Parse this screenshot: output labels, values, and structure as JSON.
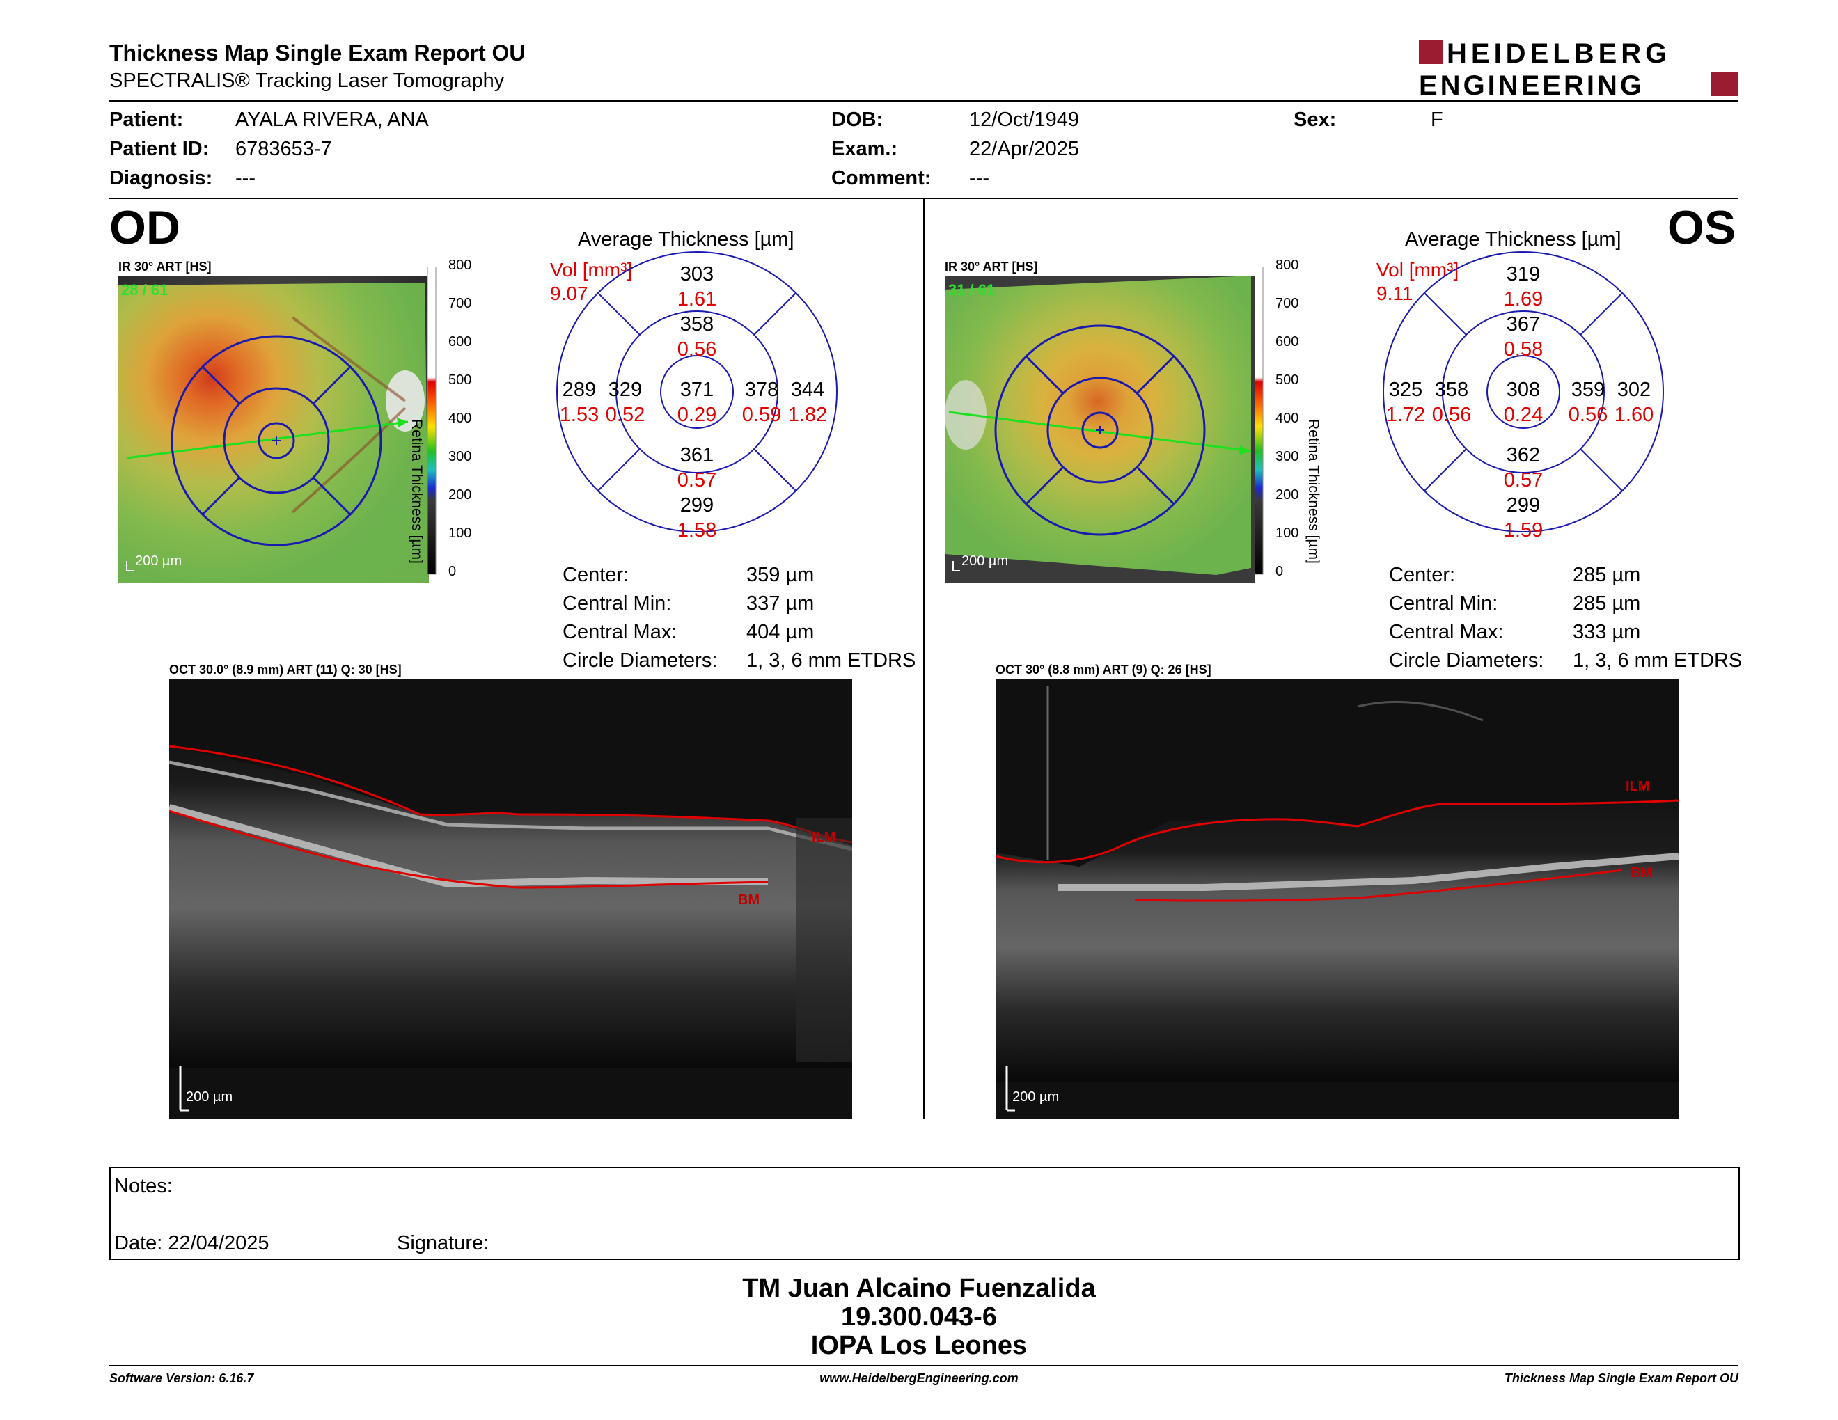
{
  "header": {
    "title": "Thickness Map Single Exam Report OU",
    "subtitle": "SPECTRALIS® Tracking Laser Tomography",
    "logo_line1": "HEIDELBERG",
    "logo_line2": "ENGINEERING",
    "brand_color": "#9b1b30"
  },
  "patient": {
    "patient_label": "Patient:",
    "patient_value": "AYALA RIVERA, ANA",
    "id_label": "Patient ID:",
    "id_value": "6783653-7",
    "diagnosis_label": "Diagnosis:",
    "diagnosis_value": "---",
    "dob_label": "DOB:",
    "dob_value": "12/Oct/1949",
    "exam_label": "Exam.:",
    "exam_value": "22/Apr/2025",
    "comment_label": "Comment:",
    "comment_value": "---",
    "sex_label": "Sex:",
    "sex_value": "F"
  },
  "colorbar": {
    "ticks": [
      "800",
      "700",
      "600",
      "500",
      "400",
      "300",
      "200",
      "100",
      "0"
    ],
    "label": "Retina Thickness [µm]"
  },
  "od": {
    "eye": "OD",
    "ir_caption": "IR 30° ART [HS]",
    "frame_count": "28 / 61",
    "scale_label": "200 µm",
    "map_title": "Average Thickness [µm]",
    "vol_label": "Vol [mm³]",
    "vol_total": "9.07",
    "sectors": {
      "outer_sup": {
        "thick": "303",
        "vol": "1.61"
      },
      "inner_sup": {
        "thick": "358",
        "vol": "0.56"
      },
      "outer_temp": {
        "thick": "289",
        "vol": "1.53"
      },
      "inner_temp": {
        "thick": "329",
        "vol": "0.52"
      },
      "center": {
        "thick": "371",
        "vol": "0.29"
      },
      "inner_nasal": {
        "thick": "378",
        "vol": "0.59"
      },
      "outer_nasal": {
        "thick": "344",
        "vol": "1.82"
      },
      "inner_inf": {
        "thick": "361",
        "vol": "0.57"
      },
      "outer_inf": {
        "thick": "299",
        "vol": "1.58"
      }
    },
    "stats": {
      "center_label": "Center:",
      "center_value": "359 µm",
      "min_label": "Central Min:",
      "min_value": "337 µm",
      "max_label": "Central Max:",
      "max_value": "404 µm",
      "diam_label": "Circle Diameters:",
      "diam_value": "1, 3, 6 mm ETDRS"
    },
    "oct_caption": "OCT 30.0° (8.9 mm) ART (11) Q: 30 [HS]",
    "oct_scale": "200 µm",
    "ilm_label": "ILM",
    "bm_label": "BM"
  },
  "os": {
    "eye": "OS",
    "ir_caption": "IR 30° ART [HS]",
    "frame_count": "31 / 61",
    "scale_label": "200 µm",
    "map_title": "Average Thickness [µm]",
    "vol_label": "Vol [mm³]",
    "vol_total": "9.11",
    "sectors": {
      "outer_sup": {
        "thick": "319",
        "vol": "1.69"
      },
      "inner_sup": {
        "thick": "367",
        "vol": "0.58"
      },
      "outer_temp": {
        "thick": "325",
        "vol": "1.72"
      },
      "inner_temp": {
        "thick": "358",
        "vol": "0.56"
      },
      "center": {
        "thick": "308",
        "vol": "0.24"
      },
      "inner_nasal": {
        "thick": "359",
        "vol": "0.56"
      },
      "outer_nasal": {
        "thick": "302",
        "vol": "1.60"
      },
      "inner_inf": {
        "thick": "362",
        "vol": "0.57"
      },
      "outer_inf": {
        "thick": "299",
        "vol": "1.59"
      }
    },
    "stats": {
      "center_label": "Center:",
      "center_value": "285 µm",
      "min_label": "Central Min:",
      "min_value": "285 µm",
      "max_label": "Central Max:",
      "max_value": "333 µm",
      "diam_label": "Circle Diameters:",
      "diam_value": "1, 3, 6 mm ETDRS"
    },
    "oct_caption": "OCT 30° (8.8 mm) ART (9) Q: 26 [HS]",
    "oct_scale": "200 µm",
    "ilm_label": "ILM",
    "bm_label": "BM"
  },
  "notes": {
    "notes_label": "Notes:",
    "date_label": "Date: 22/04/2025",
    "signature_label": "Signature:"
  },
  "signature_block": {
    "name": "TM Juan Alcaino Fuenzalida",
    "id": "19.300.043-6",
    "org": "IOPA Los Leones"
  },
  "footer": {
    "software": "Software Version: 6.16.7",
    "website": "www.HeidelbergEngineering.com",
    "report": "Thickness Map Single Exam Report OU"
  }
}
